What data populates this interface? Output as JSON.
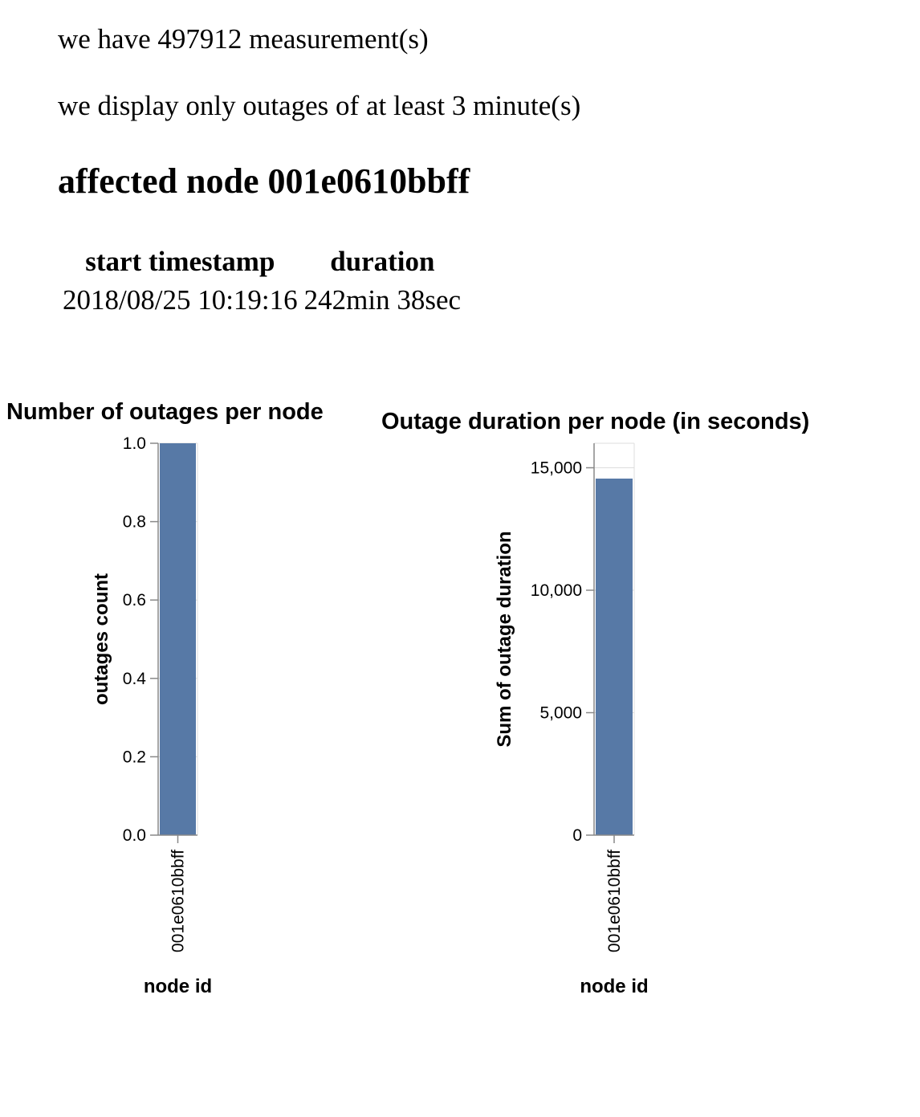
{
  "intro": {
    "measurements": "we have 497912 measurement(s)",
    "display_note": "we display only outages of at least 3 minute(s)"
  },
  "node_heading": "affected node 001e0610bbff",
  "outage_table": {
    "headers": [
      "start timestamp",
      "duration"
    ],
    "rows": [
      [
        "2018/08/25 10:19:16",
        "242min 38sec"
      ]
    ]
  },
  "colors": {
    "bar": "#5779a6",
    "axis": "#888888",
    "grid": "#dddddd"
  },
  "chart_data": [
    {
      "type": "bar",
      "title": "Number of outages per node",
      "xlabel": "node id",
      "ylabel": "outages count",
      "categories": [
        "001e0610bbff"
      ],
      "values": [
        1
      ],
      "ylim": [
        0,
        1
      ],
      "yticks": [
        0,
        0.2,
        0.4,
        0.6,
        0.8,
        1
      ],
      "ytick_labels": [
        "0.0",
        "0.2",
        "0.4",
        "0.6",
        "0.8",
        "1.0"
      ],
      "grid": true
    },
    {
      "type": "bar",
      "title": "Outage duration per node (in seconds)",
      "xlabel": "node id",
      "ylabel": "Sum of outage duration",
      "categories": [
        "001e0610bbff"
      ],
      "values": [
        14558
      ],
      "ylim": [
        0,
        16000
      ],
      "yticks": [
        0,
        5000,
        10000,
        15000
      ],
      "ytick_labels": [
        "0",
        "5,000",
        "10,000",
        "15,000"
      ],
      "grid": true
    }
  ]
}
